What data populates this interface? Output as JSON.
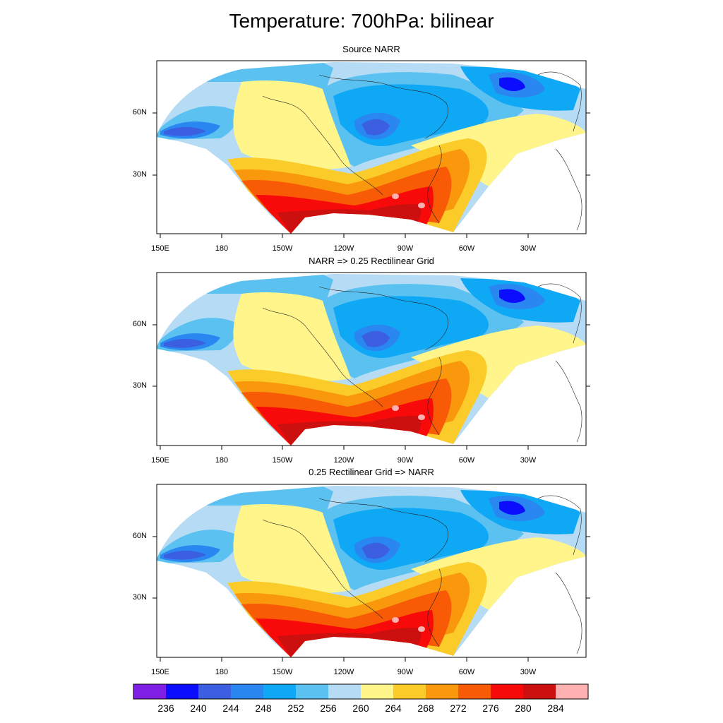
{
  "title": "Temperature: 700hPa: bilinear",
  "panels": [
    {
      "title": "Source NARR"
    },
    {
      "title": "NARR => 0.25 Rectilinear Grid"
    },
    {
      "title": "0.25 Rectilinear Grid => NARR"
    }
  ],
  "lat_labels": [
    "60N",
    "30N"
  ],
  "lon_labels": [
    "150E",
    "180",
    "150W",
    "120W",
    "90W",
    "60W",
    "30W"
  ],
  "colorbar": {
    "labels": [
      "236",
      "240",
      "244",
      "248",
      "252",
      "256",
      "260",
      "264",
      "268",
      "272",
      "276",
      "280",
      "284"
    ],
    "colors": [
      "#7f1fe6",
      "#0c0cff",
      "#3b5fe0",
      "#2a86f0",
      "#0fa8f5",
      "#5ac1f0",
      "#b6dcf5",
      "#fff58a",
      "#fbcb2a",
      "#f9980c",
      "#f85a06",
      "#f80a0a",
      "#cc1010",
      "#ffb0b0"
    ]
  }
}
